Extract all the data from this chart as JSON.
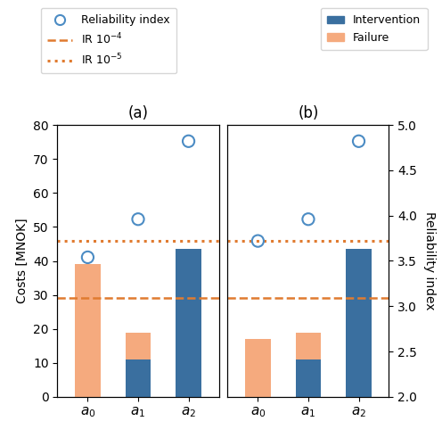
{
  "panel_a": {
    "title": "(a)",
    "categories": [
      "$a_0$",
      "$a_1$",
      "$a_2$"
    ],
    "intervention_bars": [
      0,
      11,
      43.5
    ],
    "failure_bars": [
      39,
      19,
      43.5
    ],
    "reliability_index": [
      3.54,
      3.96,
      4.82
    ],
    "ir_1e4": 3.09,
    "ir_1e5": 3.72
  },
  "panel_b": {
    "title": "(b)",
    "categories": [
      "$a_0$",
      "$a_1$",
      "$a_2$"
    ],
    "intervention_bars": [
      0,
      11,
      43.5
    ],
    "failure_bars": [
      17,
      19,
      43.5
    ],
    "reliability_index": [
      3.72,
      3.96,
      4.82
    ],
    "ir_1e4": 3.09,
    "ir_1e5": 3.72
  },
  "ylim_left": [
    0,
    80
  ],
  "ylim_right": [
    2.0,
    5.0
  ],
  "bar_width": 0.5,
  "intervention_color": "#3a6f9f",
  "failure_color": "#f5aa7e",
  "reliability_color": "#4c8cc4",
  "ir_color": "#e07b30",
  "ylabel_left": "Costs [MNOK]",
  "ylabel_right": "Reliability index"
}
